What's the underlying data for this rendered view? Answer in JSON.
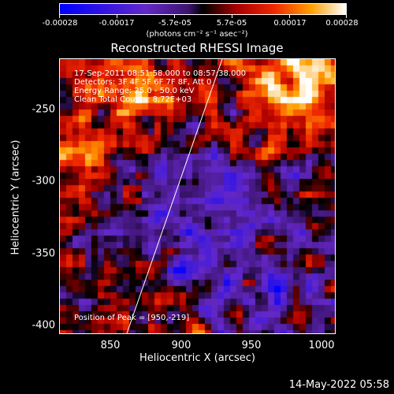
{
  "colorbar": {
    "ticks": [
      "-0.00028",
      "-0.00017",
      "-5.7e-05",
      "5.7e-05",
      "0.00017",
      "0.00028"
    ],
    "units": "(photons cm⁻² s⁻¹ asec⁻²)"
  },
  "title": "Reconstructed RHESSI Image",
  "info": {
    "time": "17-Sep-2011 08:51:58.000 to 08:57:38.000",
    "detectors": "Detectors: 3F 4F 5F 6F 7F 8F, Att 0",
    "energy": "Energy Range: 25.0 - 50.0 keV",
    "method": "Clean     Total Counts: 8.72E+03",
    "peak": "Position of Peak = [950,-219]"
  },
  "axes": {
    "xlabel": "Heliocentric X (arcsec)",
    "ylabel": "Heliocentric Y (arcsec)",
    "xticks": [
      "850",
      "900",
      "950",
      "1000"
    ],
    "yticks": [
      "-250",
      "-300",
      "-350",
      "-400"
    ]
  },
  "timestamp": "14-May-2022 05:58",
  "colors": {
    "background": "#000000",
    "text": "#ffffff"
  }
}
